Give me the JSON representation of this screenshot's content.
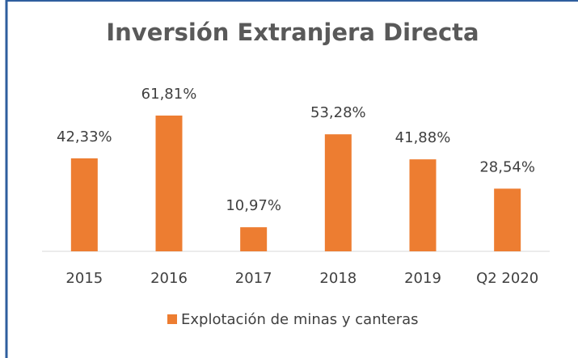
{
  "chart_data": {
    "type": "bar",
    "title": "Inversión Extranjera Directa",
    "categories": [
      "2015",
      "2016",
      "2017",
      "2018",
      "2019",
      "Q2 2020"
    ],
    "series": [
      {
        "name": "Explotación de minas y canteras",
        "color": "#ed7d31",
        "values": [
          42.33,
          61.81,
          10.97,
          53.28,
          41.88,
          28.54
        ],
        "value_labels": [
          "42,33%",
          "61,81%",
          "10,97%",
          "53,28%",
          "41,88%",
          "28,54%"
        ]
      }
    ],
    "legend": "bottom"
  }
}
